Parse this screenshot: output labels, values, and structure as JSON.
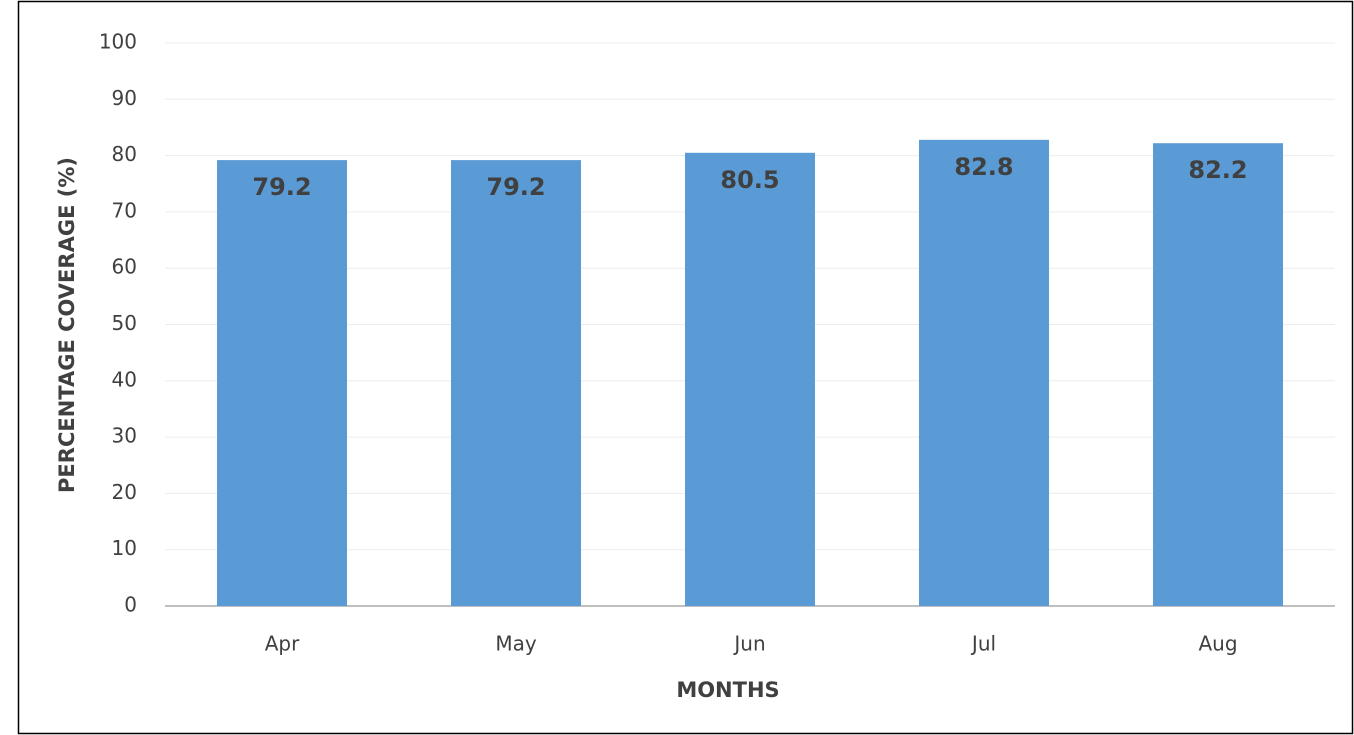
{
  "chart_data": {
    "type": "bar",
    "categories": [
      "Apr",
      "May",
      "Jun",
      "Jul",
      "Aug"
    ],
    "values": [
      79.2,
      79.2,
      80.5,
      82.8,
      82.2
    ],
    "color": "#5b9bd5",
    "ylim": [
      0,
      100
    ],
    "yticks": [
      0,
      10,
      20,
      30,
      40,
      50,
      60,
      70,
      80,
      90,
      100
    ],
    "grid": true,
    "x_label": "MONTHS",
    "y_label": "PERCENTAGE COVERAGE (%)"
  }
}
